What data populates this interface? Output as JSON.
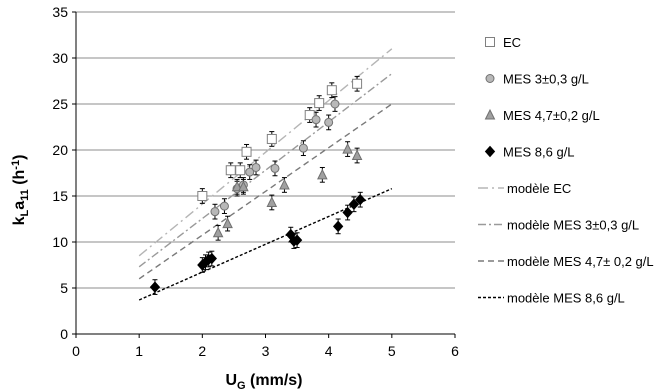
{
  "chart_data": {
    "type": "scatter",
    "xlabel": "U",
    "xlabel_sub": "G",
    "xlabel_unit": " (mm/s)",
    "ylabel": {
      "k": "k",
      "sub1": "L",
      "a": "a",
      "sub2": "11",
      "unit_open": " (h",
      "sup": "-1",
      "unit_close": ")"
    },
    "xlim": [
      0,
      6
    ],
    "ylim": [
      0,
      35
    ],
    "xticks": [
      0,
      1,
      2,
      3,
      4,
      5,
      6
    ],
    "yticks": [
      0,
      5,
      10,
      15,
      20,
      25,
      30,
      35
    ],
    "grid": "horizontal",
    "legend_position": "right",
    "series": [
      {
        "name": "EC",
        "marker": "square",
        "fill": "#ffffff",
        "stroke": "#808080",
        "error": 0.8,
        "points": [
          [
            2.0,
            15.0
          ],
          [
            2.45,
            17.8
          ],
          [
            2.6,
            17.8
          ],
          [
            2.7,
            19.8
          ],
          [
            3.1,
            21.2
          ],
          [
            3.7,
            23.8
          ],
          [
            3.85,
            25.1
          ],
          [
            4.05,
            26.5
          ],
          [
            4.45,
            27.2
          ]
        ]
      },
      {
        "name": "MES 3±0,3 g/L",
        "marker": "circle",
        "fill": "#b8b8b8",
        "stroke": "#707070",
        "error": 0.8,
        "points": [
          [
            2.2,
            13.3
          ],
          [
            2.35,
            13.9
          ],
          [
            2.55,
            15.8
          ],
          [
            2.65,
            16.2
          ],
          [
            2.75,
            17.6
          ],
          [
            2.85,
            18.1
          ],
          [
            3.15,
            18.0
          ],
          [
            3.6,
            20.2
          ],
          [
            3.8,
            23.3
          ],
          [
            4.0,
            23.0
          ],
          [
            4.1,
            25.0
          ]
        ]
      },
      {
        "name": "MES 4,7±0,2 g/L",
        "marker": "triangle",
        "fill": "#a0a0a0",
        "stroke": "#707070",
        "error": 0.8,
        "points": [
          [
            2.25,
            11.0
          ],
          [
            2.4,
            12.0
          ],
          [
            2.55,
            16.0
          ],
          [
            2.65,
            16.0
          ],
          [
            3.1,
            14.3
          ],
          [
            3.3,
            16.2
          ],
          [
            3.9,
            17.3
          ],
          [
            4.3,
            20.1
          ],
          [
            4.45,
            19.4
          ]
        ]
      },
      {
        "name": "MES 8,6 g/L",
        "marker": "diamond",
        "fill": "#000000",
        "stroke": "#000000",
        "error": 0.8,
        "points": [
          [
            1.25,
            5.1
          ],
          [
            2.0,
            7.5
          ],
          [
            2.05,
            7.8
          ],
          [
            2.1,
            8.1
          ],
          [
            2.15,
            8.2
          ],
          [
            3.4,
            10.8
          ],
          [
            3.45,
            10.1
          ],
          [
            3.5,
            10.2
          ],
          [
            4.15,
            11.7
          ],
          [
            4.3,
            13.2
          ],
          [
            4.4,
            14.1
          ],
          [
            4.5,
            14.6
          ]
        ]
      }
    ],
    "models": [
      {
        "name": "modèle EC",
        "stroke": "#b5b5b5",
        "dash": "10 4 2 4",
        "from": [
          1.0,
          8.5
        ],
        "to": [
          5.0,
          31.0
        ]
      },
      {
        "name": "modèle MES 3±0,3 g/L",
        "stroke": "#9a9a9a",
        "dash": "8 3 2 3",
        "from": [
          1.0,
          7.3
        ],
        "to": [
          5.0,
          28.3
        ]
      },
      {
        "name": "modèle MES 4,7± 0,2 g/L",
        "stroke": "#7a7a7a",
        "dash": "6 4",
        "from": [
          1.0,
          6.0
        ],
        "to": [
          5.0,
          25.0
        ]
      },
      {
        "name": "modèle MES 8,6 g/L",
        "stroke": "#000000",
        "dash": "3 2",
        "from": [
          1.0,
          3.7
        ],
        "to": [
          5.0,
          15.8
        ]
      }
    ]
  }
}
